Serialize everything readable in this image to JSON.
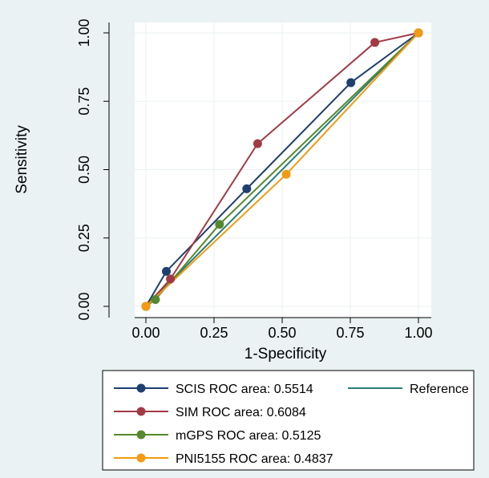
{
  "chart_data": {
    "type": "line",
    "xlabel": "1-Specificity",
    "ylabel": "Sensitivity",
    "xlim": [
      0,
      1
    ],
    "ylim": [
      0,
      1
    ],
    "xticks": [
      "0.00",
      "0.25",
      "0.50",
      "0.75",
      "1.00"
    ],
    "yticks": [
      "0.00",
      "0.25",
      "0.50",
      "0.75",
      "1.00"
    ],
    "grid": true,
    "legend_position": "bottom",
    "series": [
      {
        "name": "SCIS ROC area: 0.5514",
        "color": "#1f3f6e",
        "x": [
          0,
          0.075,
          0.37,
          0.752,
          1
        ],
        "y": [
          0,
          0.128,
          0.43,
          0.818,
          1
        ]
      },
      {
        "name": "SIM ROC area: 0.6084",
        "color": "#a23a45",
        "x": [
          0,
          0.09,
          0.41,
          0.84,
          1
        ],
        "y": [
          0,
          0.1,
          0.595,
          0.965,
          1
        ]
      },
      {
        "name": "mGPS ROC area: 0.5125",
        "color": "#55892d",
        "x": [
          0,
          0.035,
          0.27,
          1
        ],
        "y": [
          0,
          0.025,
          0.3,
          1
        ]
      },
      {
        "name": "PNI5155 ROC area: 0.4837",
        "color": "#f29b12",
        "x": [
          0,
          0.515,
          1
        ],
        "y": [
          0,
          0.483,
          1
        ]
      }
    ],
    "reference": {
      "name": "Reference",
      "color": "#2a7d78",
      "x": [
        0,
        1
      ],
      "y": [
        0,
        1
      ]
    }
  }
}
